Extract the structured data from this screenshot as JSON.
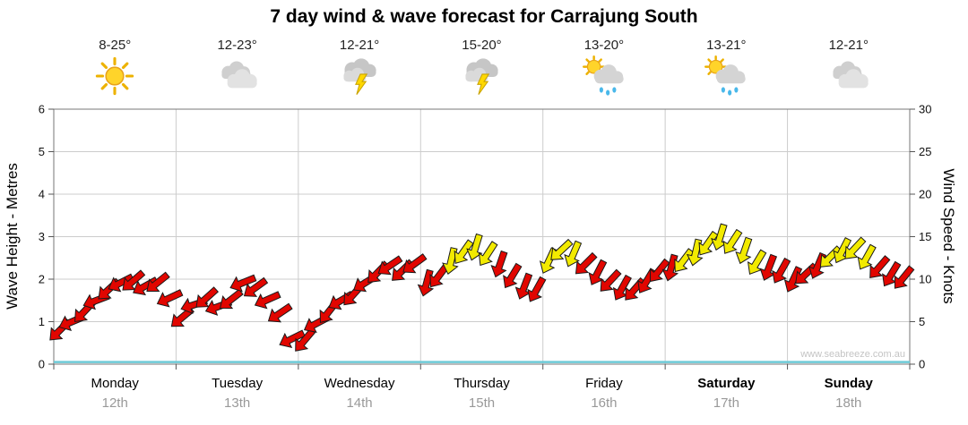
{
  "title": "7 day wind & wave forecast for Carrajung South",
  "watermark": "www.seabreeze.com.au",
  "axes": {
    "left_title": "Wave Height - Metres",
    "right_title": "Wind Speed - Knots",
    "left_ticks": [
      0,
      1,
      2,
      3,
      4,
      5,
      6
    ],
    "right_ticks": [
      0,
      5,
      10,
      15,
      20,
      25,
      30
    ]
  },
  "forecast": {
    "days": [
      {
        "name": "Monday",
        "date": "12th",
        "temp": "8-25°",
        "icon": "sunny",
        "bold": false
      },
      {
        "name": "Tuesday",
        "date": "13th",
        "temp": "12-23°",
        "icon": "cloudy",
        "bold": false
      },
      {
        "name": "Wednesday",
        "date": "14th",
        "temp": "12-21°",
        "icon": "storm",
        "bold": false
      },
      {
        "name": "Thursday",
        "date": "15th",
        "temp": "15-20°",
        "icon": "storm",
        "bold": false
      },
      {
        "name": "Friday",
        "date": "16th",
        "temp": "13-20°",
        "icon": "sun-rain",
        "bold": false
      },
      {
        "name": "Saturday",
        "date": "17th",
        "temp": "13-21°",
        "icon": "sun-rain",
        "bold": true
      },
      {
        "name": "Sunday",
        "date": "18th",
        "temp": "12-21°",
        "icon": "cloudy",
        "bold": true
      }
    ]
  },
  "chart_data": {
    "type": "line",
    "x_categories": [
      "Monday 12th",
      "Tuesday 13th",
      "Wednesday 14th",
      "Thursday 15th",
      "Friday 16th",
      "Saturday 17th",
      "Sunday 18th"
    ],
    "y_left": {
      "label": "Wave Height - Metres",
      "range": [
        0,
        6
      ]
    },
    "y_right": {
      "label": "Wind Speed - Knots",
      "range": [
        0,
        30
      ]
    },
    "grid": true,
    "palette": {
      "arrow_red": "#e10600",
      "arrow_yellow": "#f2ea00",
      "arrow_outline": "#1a1a1a",
      "wave": "#6cc9d6",
      "grid": "#cccccc",
      "border": "#777777",
      "tick": "#555555"
    },
    "series": [
      {
        "name": "Wind Speed (knots)",
        "style": "wind-arrows",
        "x_days": [
          0.05,
          0.15,
          0.25,
          0.35,
          0.45,
          0.55,
          0.65,
          0.75,
          0.85,
          0.95,
          1.05,
          1.15,
          1.25,
          1.35,
          1.45,
          1.55,
          1.65,
          1.75,
          1.85,
          1.95,
          2.05,
          2.15,
          2.25,
          2.35,
          2.45,
          2.55,
          2.65,
          2.75,
          2.85,
          2.95,
          3.05,
          3.15,
          3.25,
          3.35,
          3.45,
          3.55,
          3.65,
          3.75,
          3.85,
          3.95,
          4.05,
          4.15,
          4.25,
          4.35,
          4.45,
          4.55,
          4.65,
          4.75,
          4.85,
          4.95,
          5.05,
          5.15,
          5.25,
          5.35,
          5.45,
          5.55,
          5.65,
          5.75,
          5.85,
          5.95,
          6.05,
          6.15,
          6.25,
          6.35,
          6.45,
          6.55,
          6.65,
          6.75,
          6.85,
          6.95
        ],
        "values": [
          4.0,
          5.0,
          6.2,
          7.5,
          8.8,
          9.6,
          9.8,
          9.2,
          9.6,
          7.8,
          5.5,
          7.0,
          7.8,
          6.8,
          7.6,
          9.6,
          9.0,
          7.6,
          6.0,
          3.0,
          2.8,
          4.8,
          6.2,
          7.5,
          8.2,
          9.6,
          10.8,
          11.6,
          11.0,
          11.8,
          9.6,
          10.4,
          12.2,
          13.2,
          13.8,
          13.0,
          11.8,
          10.4,
          9.2,
          8.8,
          12.2,
          13.4,
          13.0,
          11.8,
          10.8,
          9.8,
          9.0,
          8.8,
          9.8,
          11.0,
          11.4,
          12.2,
          13.2,
          14.2,
          15.0,
          14.4,
          13.4,
          12.0,
          11.4,
          11.0,
          10.0,
          10.6,
          11.6,
          12.6,
          13.4,
          13.6,
          12.6,
          11.4,
          10.6,
          10.2
        ],
        "directions_deg": [
          225,
          247,
          223,
          249,
          227,
          243,
          229,
          241,
          231,
          245,
          230,
          252,
          228,
          250,
          232,
          248,
          234,
          246,
          236,
          244,
          220,
          242,
          218,
          240,
          222,
          238,
          224,
          236,
          226,
          234,
          195,
          217,
          193,
          215,
          197,
          213,
          199,
          211,
          201,
          209,
          205,
          227,
          203,
          225,
          207,
          223,
          209,
          221,
          211,
          219,
          195,
          217,
          193,
          215,
          197,
          213,
          199,
          211,
          201,
          209,
          205,
          227,
          203,
          225,
          207,
          223,
          209,
          221,
          211,
          219
        ],
        "colors": [
          "r",
          "r",
          "r",
          "r",
          "r",
          "r",
          "r",
          "r",
          "r",
          "r",
          "r",
          "r",
          "r",
          "r",
          "r",
          "r",
          "r",
          "r",
          "r",
          "r",
          "r",
          "r",
          "r",
          "r",
          "r",
          "r",
          "r",
          "r",
          "r",
          "r",
          "r",
          "r",
          "y",
          "y",
          "y",
          "y",
          "r",
          "r",
          "r",
          "r",
          "y",
          "y",
          "y",
          "r",
          "r",
          "r",
          "r",
          "r",
          "r",
          "r",
          "r",
          "y",
          "y",
          "y",
          "y",
          "y",
          "y",
          "y",
          "r",
          "r",
          "r",
          "r",
          "r",
          "y",
          "y",
          "y",
          "y",
          "r",
          "r",
          "r"
        ]
      },
      {
        "name": "Wave Height (m)",
        "style": "line",
        "x_days": [
          0,
          7
        ],
        "values": [
          0.05,
          0.05
        ]
      }
    ]
  }
}
